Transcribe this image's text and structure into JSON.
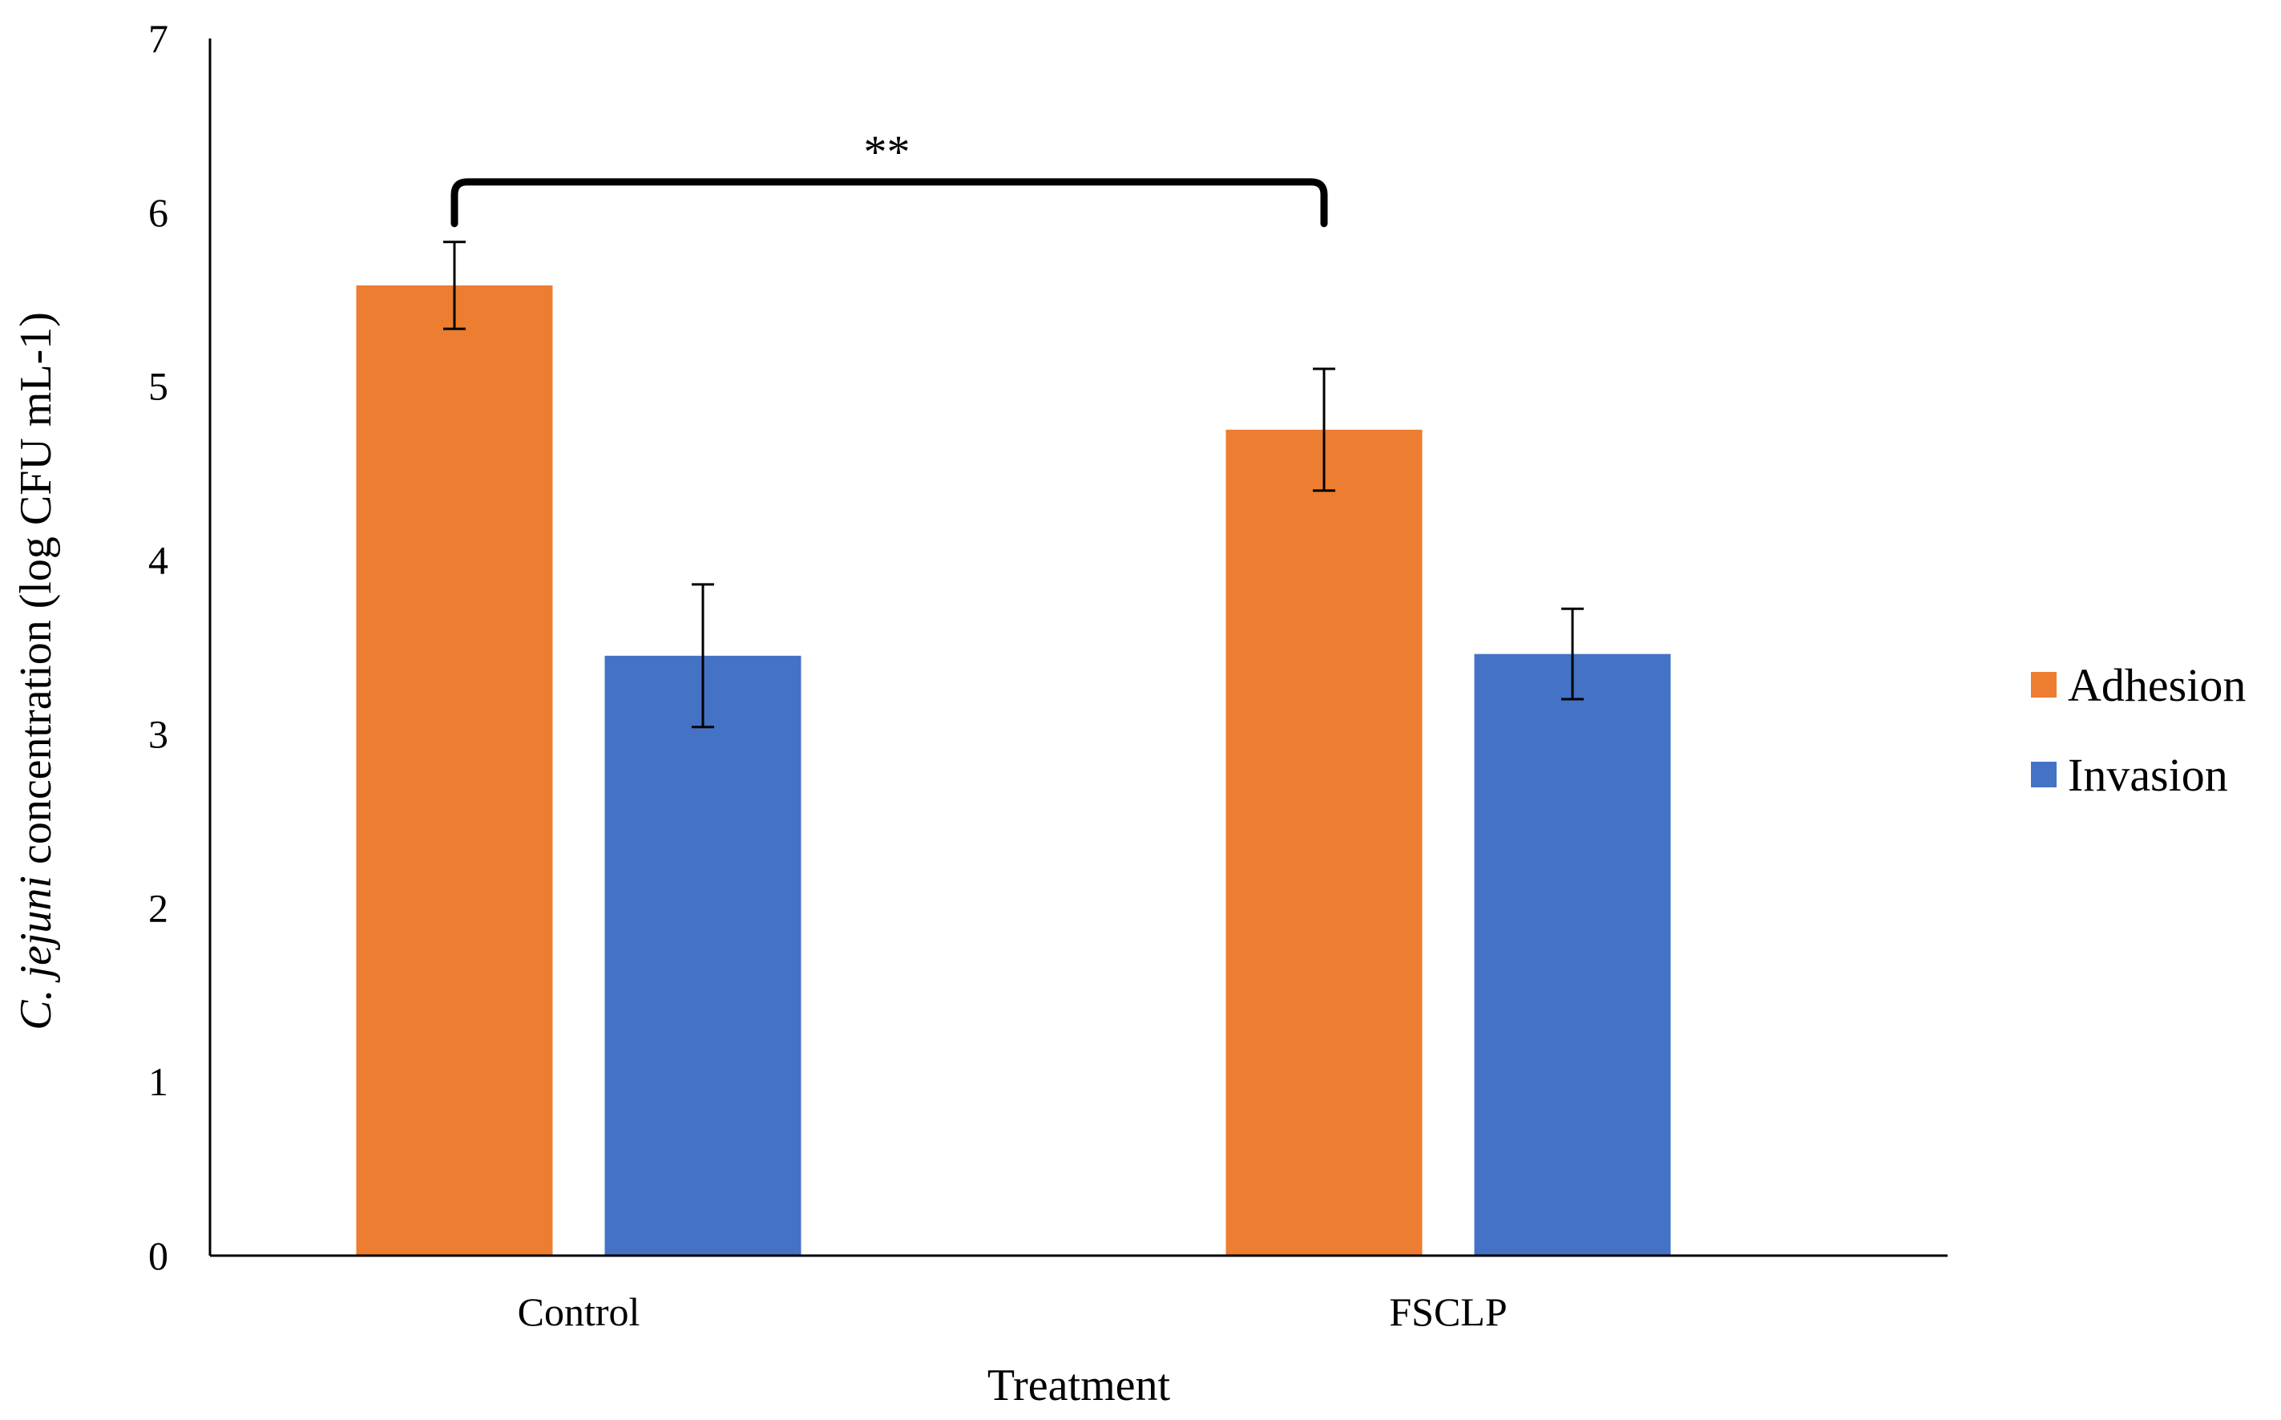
{
  "chart_data": {
    "type": "bar",
    "title": "",
    "xlabel": "Treatment",
    "ylabel_italic": "C. jejuni",
    "ylabel_rest": " concentration (log CFU mL-1)",
    "categories": [
      "Control",
      "FSCLP"
    ],
    "series": [
      {
        "name": "Adhesion",
        "color": "#ED7D31",
        "values": [
          5.58,
          4.75
        ],
        "errors": [
          0.25,
          0.35
        ]
      },
      {
        "name": "Invasion",
        "color": "#4472C4",
        "values": [
          3.45,
          3.46
        ],
        "errors": [
          0.41,
          0.26
        ]
      }
    ],
    "ylim": [
      0,
      7
    ],
    "yticks": [
      0,
      1,
      2,
      3,
      4,
      5,
      6,
      7
    ],
    "grid": false,
    "legend_position": "right",
    "significance": {
      "label": "**",
      "between": [
        "Control",
        "FSCLP"
      ],
      "series": "Adhesion",
      "y": 6.0
    }
  }
}
